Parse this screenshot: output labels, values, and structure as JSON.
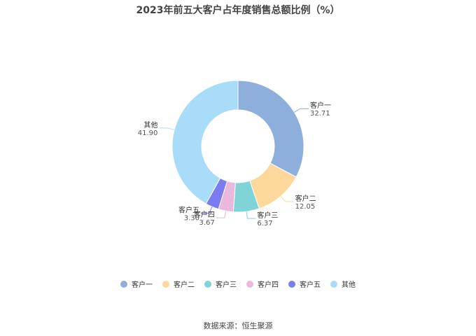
{
  "chart_data": {
    "type": "pie",
    "title": "2023年前五大客户占年度销售总额比例（%）",
    "categories": [
      "客户一",
      "客户二",
      "客户三",
      "客户四",
      "客户五",
      "其他"
    ],
    "values": [
      32.71,
      12.05,
      6.37,
      3.67,
      3.3,
      41.9
    ],
    "value_labels": [
      "32.71",
      "12.05",
      "6.37",
      "3.67",
      "3.30",
      "41.90"
    ],
    "colors": [
      "#8eaedc",
      "#fdd89a",
      "#7fd4d7",
      "#e9b8dc",
      "#7b7cef",
      "#a9dcf9"
    ],
    "donut": true,
    "legend": "bottom"
  },
  "footer": {
    "source": "数据来源：恒生聚源"
  }
}
